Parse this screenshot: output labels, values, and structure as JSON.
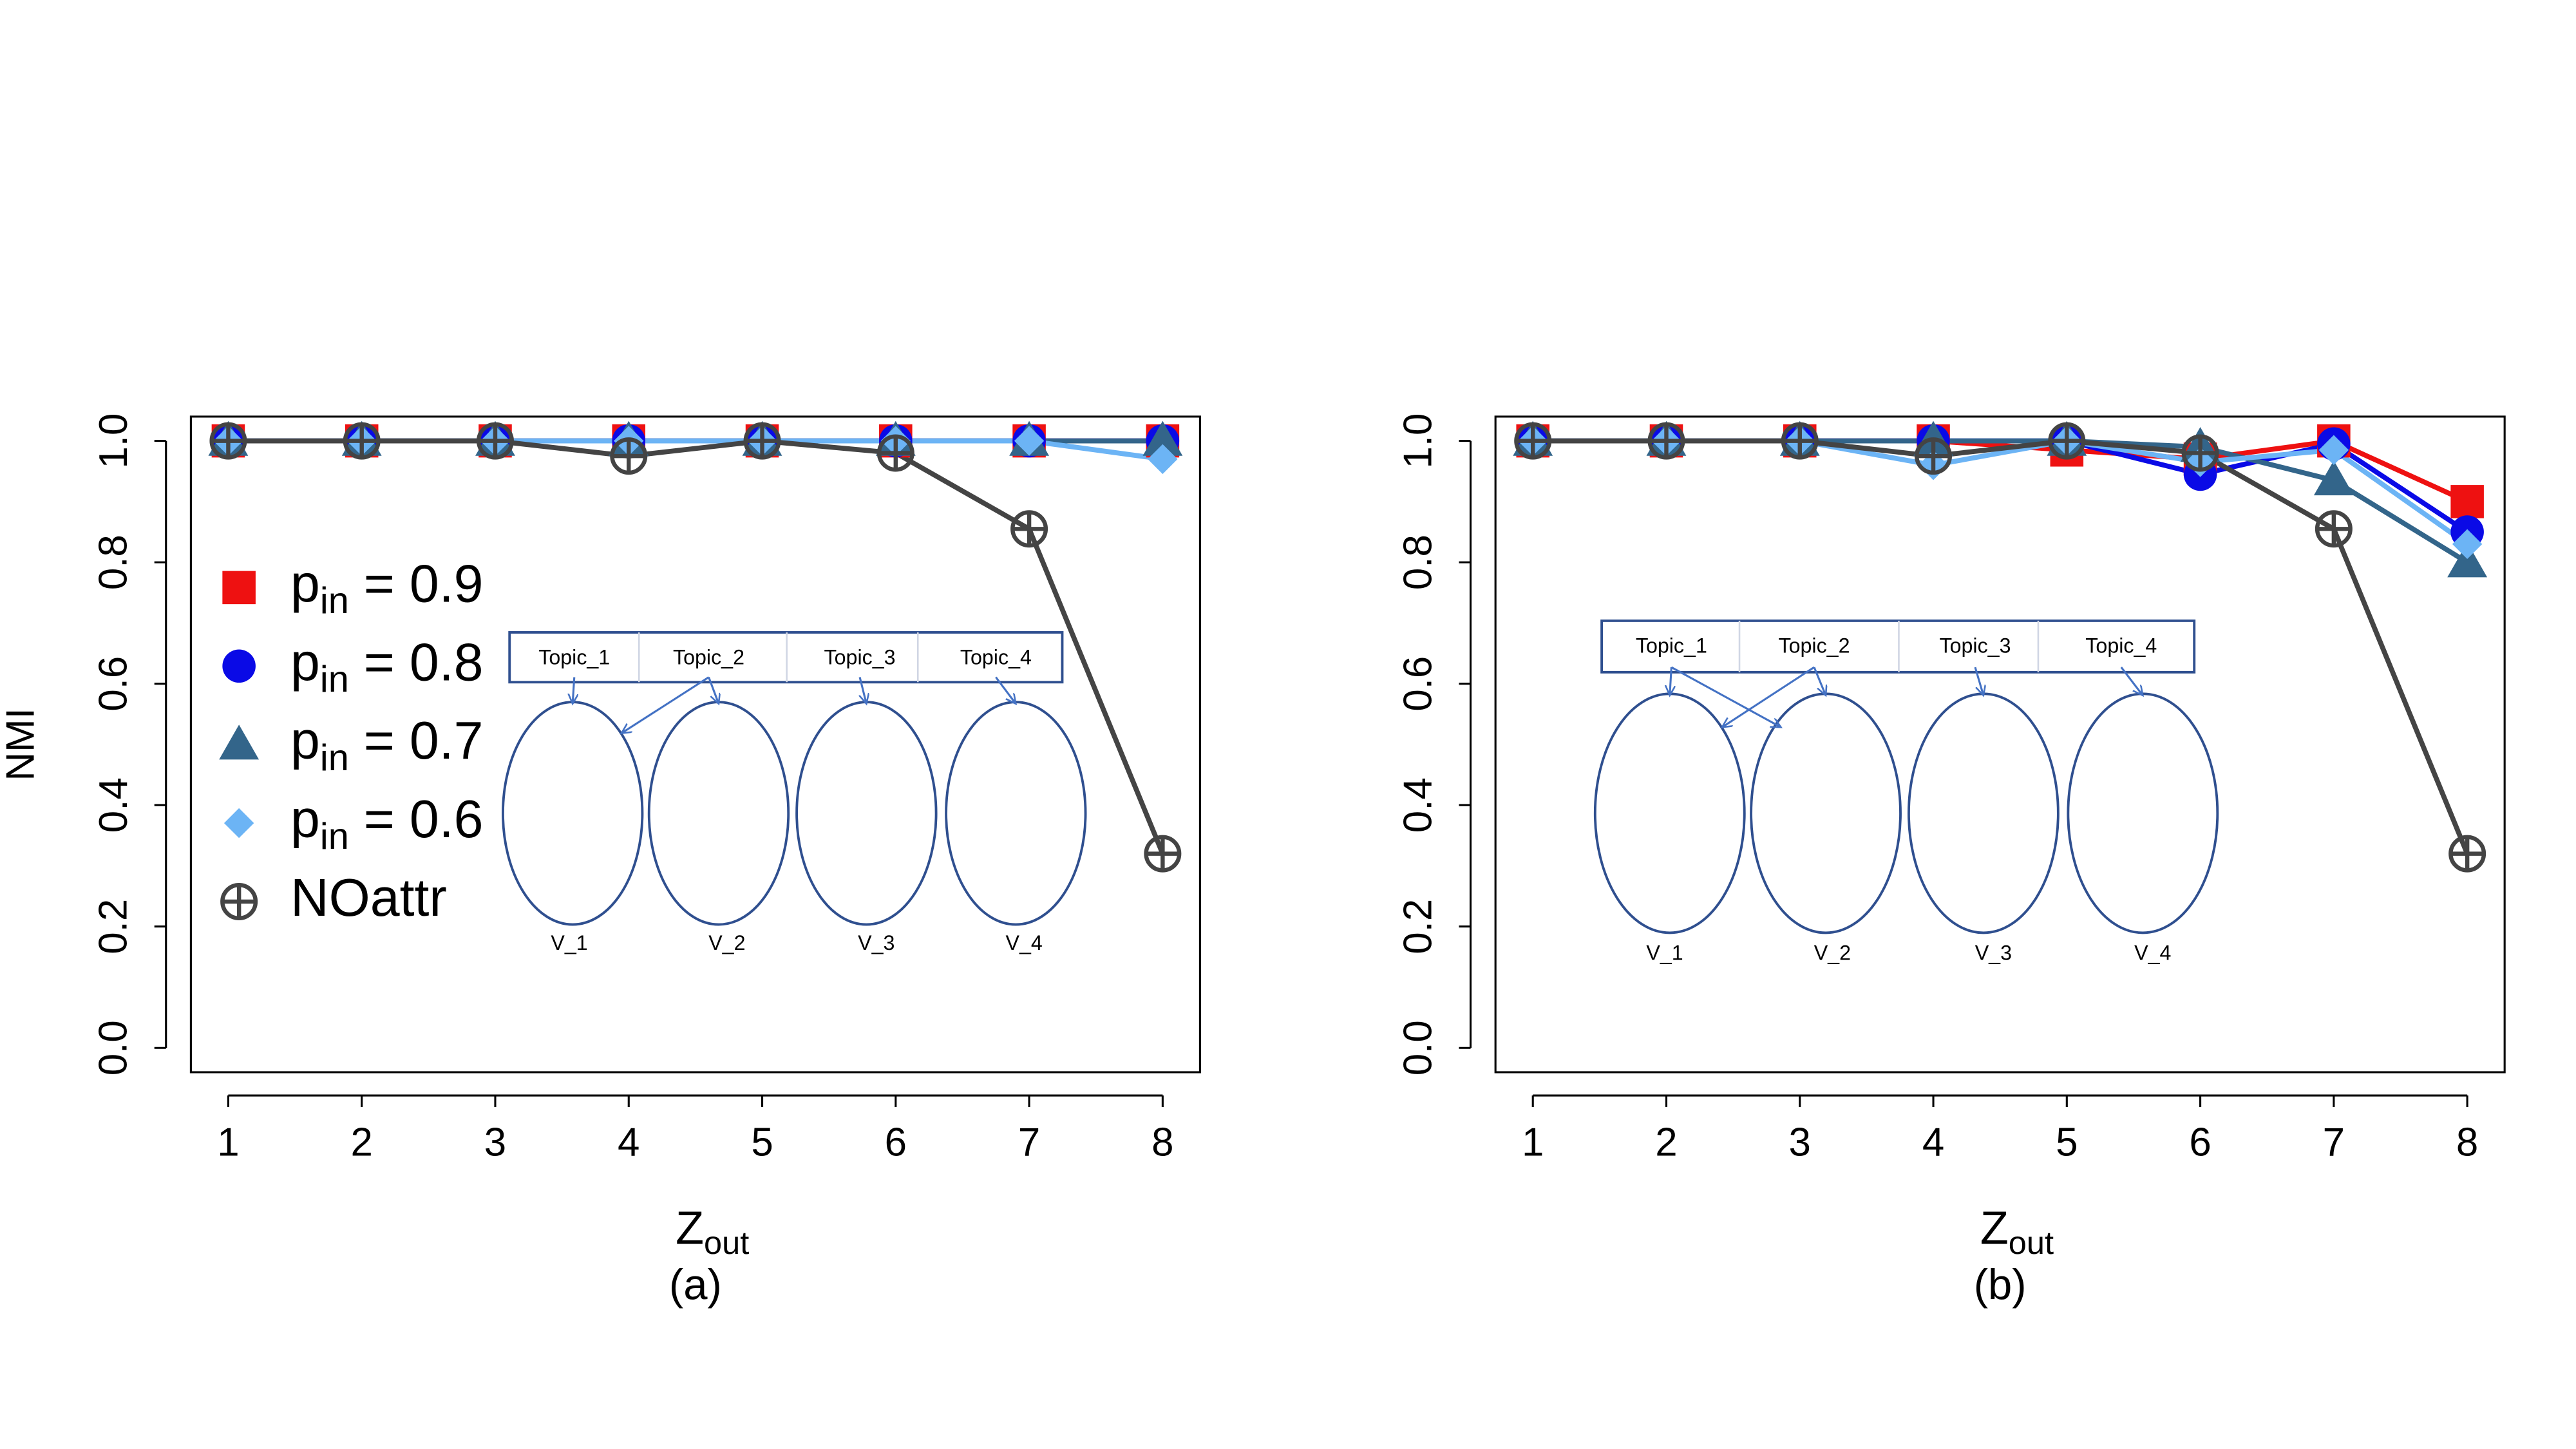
{
  "chart_data": [
    {
      "type": "line",
      "xlabel": "Z_out",
      "subtitle": "(a)",
      "ylabel": "NMI",
      "x": [
        1,
        2,
        3,
        4,
        5,
        6,
        7,
        8
      ],
      "xlim": [
        0.72,
        8.28
      ],
      "ylim": [
        -0.04,
        1.04
      ],
      "xticks": [
        1,
        2,
        3,
        4,
        5,
        6,
        7,
        8
      ],
      "yticks": [
        {
          "value": 0,
          "label": "0.0"
        },
        0.2,
        0.4,
        0.6,
        0.8,
        {
          "value": 1,
          "label": "1.0"
        }
      ],
      "legend": "left",
      "series": [
        {
          "name": "p_in = 0.9",
          "color": "#ee1111",
          "marker": "square",
          "values": [
            1,
            1,
            1,
            1,
            1,
            1,
            1,
            1
          ]
        },
        {
          "name": "p_in = 0.8",
          "color": "#0a0ae6",
          "marker": "circle",
          "values": [
            1,
            1,
            1,
            1,
            1,
            1,
            1,
            1
          ]
        },
        {
          "name": "p_in = 0.7",
          "color": "#33658a",
          "marker": "triangle",
          "values": [
            1,
            1,
            1,
            1,
            1,
            1,
            1,
            1
          ]
        },
        {
          "name": "p_in = 0.6",
          "color": "#6cb4f5",
          "marker": "diamond",
          "values": [
            1,
            1,
            1,
            1,
            1,
            1,
            1,
            0.97
          ]
        },
        {
          "name": "NOattr",
          "color": "#444444",
          "marker": "circle-plus",
          "values": [
            1,
            1,
            1,
            0.975,
            1,
            0.98,
            0.855,
            0.32
          ]
        }
      ],
      "inset": {
        "topics": [
          "Topic_1",
          "Topic_2",
          "Topic_3",
          "Topic_4"
        ],
        "nodes": [
          "V_1",
          "V_2",
          "V_3",
          "V_4"
        ]
      }
    },
    {
      "type": "line",
      "xlabel": "Z_out",
      "subtitle": "(b)",
      "x": [
        1,
        2,
        3,
        4,
        5,
        6,
        7,
        8
      ],
      "xlim": [
        0.72,
        8.28
      ],
      "ylim": [
        -0.04,
        1.04
      ],
      "xticks": [
        1,
        2,
        3,
        4,
        5,
        6,
        7,
        8
      ],
      "yticks": [
        {
          "value": 0,
          "label": "0.0"
        },
        0.2,
        0.4,
        0.6,
        0.8,
        {
          "value": 1,
          "label": "1.0"
        }
      ],
      "series": [
        {
          "name": "p_in = 0.9",
          "color": "#ee1111",
          "marker": "square",
          "values": [
            1,
            1,
            1,
            1,
            0.985,
            0.97,
            1,
            0.9
          ]
        },
        {
          "name": "p_in = 0.8",
          "color": "#0a0ae6",
          "marker": "circle",
          "values": [
            1,
            1,
            1,
            1,
            1,
            0.945,
            0.995,
            0.85
          ]
        },
        {
          "name": "p_in = 0.7",
          "color": "#33658a",
          "marker": "triangle",
          "values": [
            1,
            1,
            1,
            1,
            1,
            0.99,
            0.935,
            0.8
          ]
        },
        {
          "name": "p_in = 0.6",
          "color": "#6cb4f5",
          "marker": "diamond",
          "values": [
            1,
            1,
            1,
            0.96,
            1,
            0.965,
            0.985,
            0.83
          ]
        },
        {
          "name": "NOattr",
          "color": "#444444",
          "marker": "circle-plus",
          "values": [
            1,
            1,
            1,
            0.975,
            1,
            0.98,
            0.855,
            0.32
          ]
        }
      ],
      "inset": {
        "topics": [
          "Topic_1",
          "Topic_2",
          "Topic_3",
          "Topic_4"
        ],
        "nodes": [
          "V_1",
          "V_2",
          "V_3",
          "V_4"
        ]
      }
    }
  ]
}
